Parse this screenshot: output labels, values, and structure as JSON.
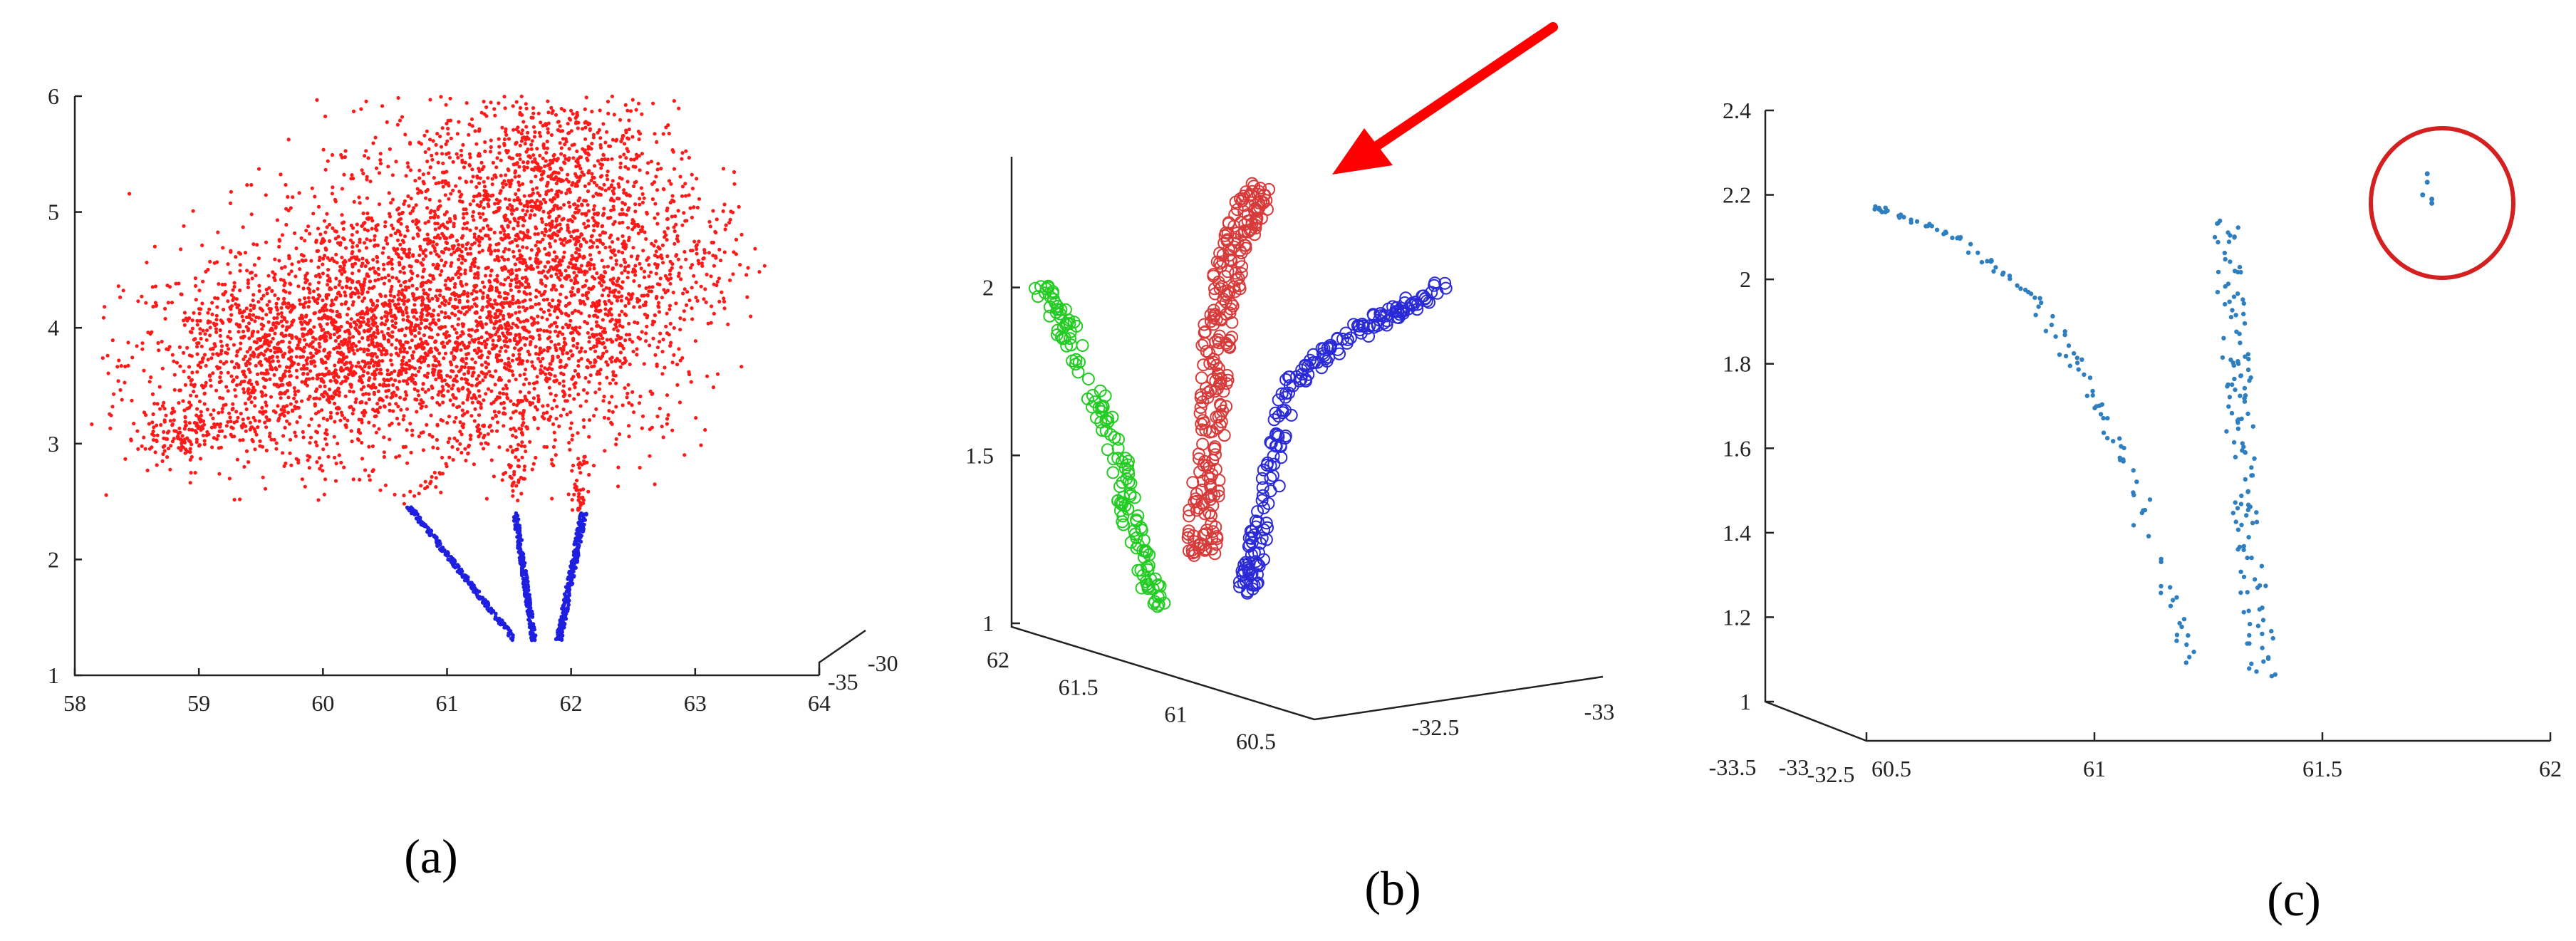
{
  "captions": {
    "a": "(a)",
    "b": "(b)",
    "c": "(c)"
  },
  "colors": {
    "crown": "#ff1a1a",
    "trunk": "#1f1fe0",
    "green": "#22cc22",
    "red": "#d83a3a",
    "blue": "#2a2ad8",
    "dots": "#2f7fc0",
    "arrow": "#ff0000",
    "circle": "#d42020"
  },
  "chart_data": [
    {
      "id": "a",
      "type": "scatter",
      "title": "",
      "xlabel": "",
      "ylabel": "",
      "xlim": [
        58,
        64
      ],
      "ylim": [
        1,
        6
      ],
      "x_ticks": [
        "58",
        "59",
        "60",
        "61",
        "62",
        "63",
        "64"
      ],
      "y_ticks": [
        "1",
        "2",
        "3",
        "4",
        "5",
        "6"
      ],
      "depth_ticks": [
        "-35",
        "-30"
      ],
      "grid": false,
      "series": [
        {
          "color_key": "crown",
          "crown_clusters": [
            {
              "x": 59.5,
              "y": 3.7,
              "sx": 0.55,
              "sy": 0.45,
              "n": 900
            },
            {
              "x": 60.3,
              "y": 4.0,
              "sx": 0.55,
              "sy": 0.55,
              "n": 1000
            },
            {
              "x": 61.3,
              "y": 4.7,
              "sx": 0.65,
              "sy": 0.6,
              "n": 1300
            },
            {
              "x": 61.2,
              "y": 3.7,
              "sx": 0.6,
              "sy": 0.4,
              "n": 700
            },
            {
              "x": 62.2,
              "y": 4.2,
              "sx": 0.45,
              "sy": 0.6,
              "n": 700
            },
            {
              "x": 62.0,
              "y": 5.4,
              "sx": 0.45,
              "sy": 0.35,
              "n": 450
            },
            {
              "x": 58.9,
              "y": 3.1,
              "sx": 0.2,
              "sy": 0.12,
              "n": 120
            },
            {
              "x": 63.0,
              "y": 4.6,
              "sx": 0.35,
              "sy": 0.3,
              "n": 120
            }
          ],
          "crown_lines": [
            {
              "x0": 60.6,
              "y0": 2.45,
              "x1": 61.5,
              "y1": 3.3,
              "n": 40
            },
            {
              "x0": 61.55,
              "y0": 2.5,
              "x1": 61.6,
              "y1": 3.4,
              "n": 60
            },
            {
              "x0": 62.05,
              "y0": 2.4,
              "x1": 62.1,
              "y1": 2.9,
              "n": 40
            }
          ]
        },
        {
          "color_key": "trunk",
          "trunk_lines": [
            {
              "x0": 60.7,
              "y0": 2.45,
              "x1": 61.55,
              "y1": 1.3,
              "w": 0.05,
              "n": 220
            },
            {
              "x0": 61.55,
              "y0": 2.4,
              "x1": 61.7,
              "y1": 1.3,
              "w": 0.04,
              "n": 220
            },
            {
              "x0": 62.1,
              "y0": 2.4,
              "x1": 61.9,
              "y1": 1.3,
              "w": 0.05,
              "n": 260
            }
          ]
        }
      ]
    },
    {
      "id": "b",
      "type": "scatter",
      "title": "",
      "xlabel": "",
      "ylabel": "",
      "zlim": [
        1,
        2.4
      ],
      "z_ticks": [
        "1",
        "1.5",
        "2"
      ],
      "x_ticks": [
        "62",
        "61.5",
        "61",
        "60.5"
      ],
      "y_ticks": [
        "-32.5",
        "-33"
      ],
      "grid": false,
      "series": [
        {
          "color_key": "green",
          "path": [
            [
              0.05,
              2.0
            ],
            [
              0.12,
              1.85
            ],
            [
              0.22,
              1.55
            ],
            [
              0.27,
              1.25
            ],
            [
              0.32,
              1.05
            ]
          ],
          "n": 140,
          "w": 0.045
        },
        {
          "color_key": "red",
          "path": [
            [
              0.42,
              1.2
            ],
            [
              0.44,
              1.6
            ],
            [
              0.46,
              1.9
            ],
            [
              0.5,
              2.15
            ],
            [
              0.56,
              2.3
            ]
          ],
          "n": 260,
          "w": 0.07
        },
        {
          "color_key": "blue",
          "path": [
            [
              0.52,
              1.08
            ],
            [
              0.56,
              1.3
            ],
            [
              0.62,
              1.7
            ],
            [
              0.75,
              1.85
            ],
            [
              0.98,
              2.0
            ]
          ],
          "n": 200,
          "w": 0.045
        }
      ]
    },
    {
      "id": "c",
      "type": "scatter",
      "title": "",
      "xlabel": "",
      "ylabel": "",
      "xlim": [
        60.5,
        62
      ],
      "zlim": [
        1,
        2.4
      ],
      "x_ticks": [
        "60.5",
        "61",
        "61.5",
        "62"
      ],
      "z_ticks": [
        "1",
        "1.2",
        "1.4",
        "1.6",
        "1.8",
        "2",
        "2.2",
        "2.4"
      ],
      "y_ticks": [
        "-33.5",
        "-33",
        "-32.5"
      ],
      "grid": false,
      "series": [
        {
          "color_key": "dots",
          "left_stem": [
            [
              60.5,
              2.18
            ],
            [
              60.7,
              2.1
            ],
            [
              60.9,
              1.92
            ],
            [
              61.05,
              1.62
            ],
            [
              61.15,
              1.3
            ],
            [
              61.22,
              1.07
            ]
          ],
          "left_n": 120,
          "right_stem": [
            [
              61.29,
              2.15
            ],
            [
              61.31,
              1.8
            ],
            [
              61.33,
              1.45
            ],
            [
              61.37,
              1.06
            ]
          ],
          "right_n": 140,
          "outlier": [
            [
              61.73,
              2.25
            ],
            [
              61.73,
              2.23
            ],
            [
              61.72,
              2.2
            ],
            [
              61.74,
              2.18
            ],
            [
              61.74,
              2.19
            ]
          ]
        }
      ]
    }
  ]
}
